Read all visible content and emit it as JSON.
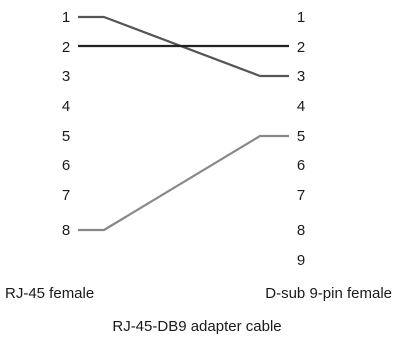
{
  "left_connector": {
    "label": "RJ-45 female",
    "pins": [
      "1",
      "2",
      "3",
      "4",
      "5",
      "6",
      "7",
      "8"
    ]
  },
  "right_connector": {
    "label": "D-sub 9-pin female",
    "pins": [
      "1",
      "2",
      "3",
      "4",
      "5",
      "6",
      "7",
      "8",
      "9"
    ]
  },
  "caption": "RJ-45-DB9 adapter cable",
  "wires": [
    {
      "from": "1",
      "to": "3",
      "color": "#555555"
    },
    {
      "from": "2",
      "to": "2",
      "color": "#222222"
    },
    {
      "from": "8",
      "to": "5",
      "color": "#888888"
    }
  ]
}
